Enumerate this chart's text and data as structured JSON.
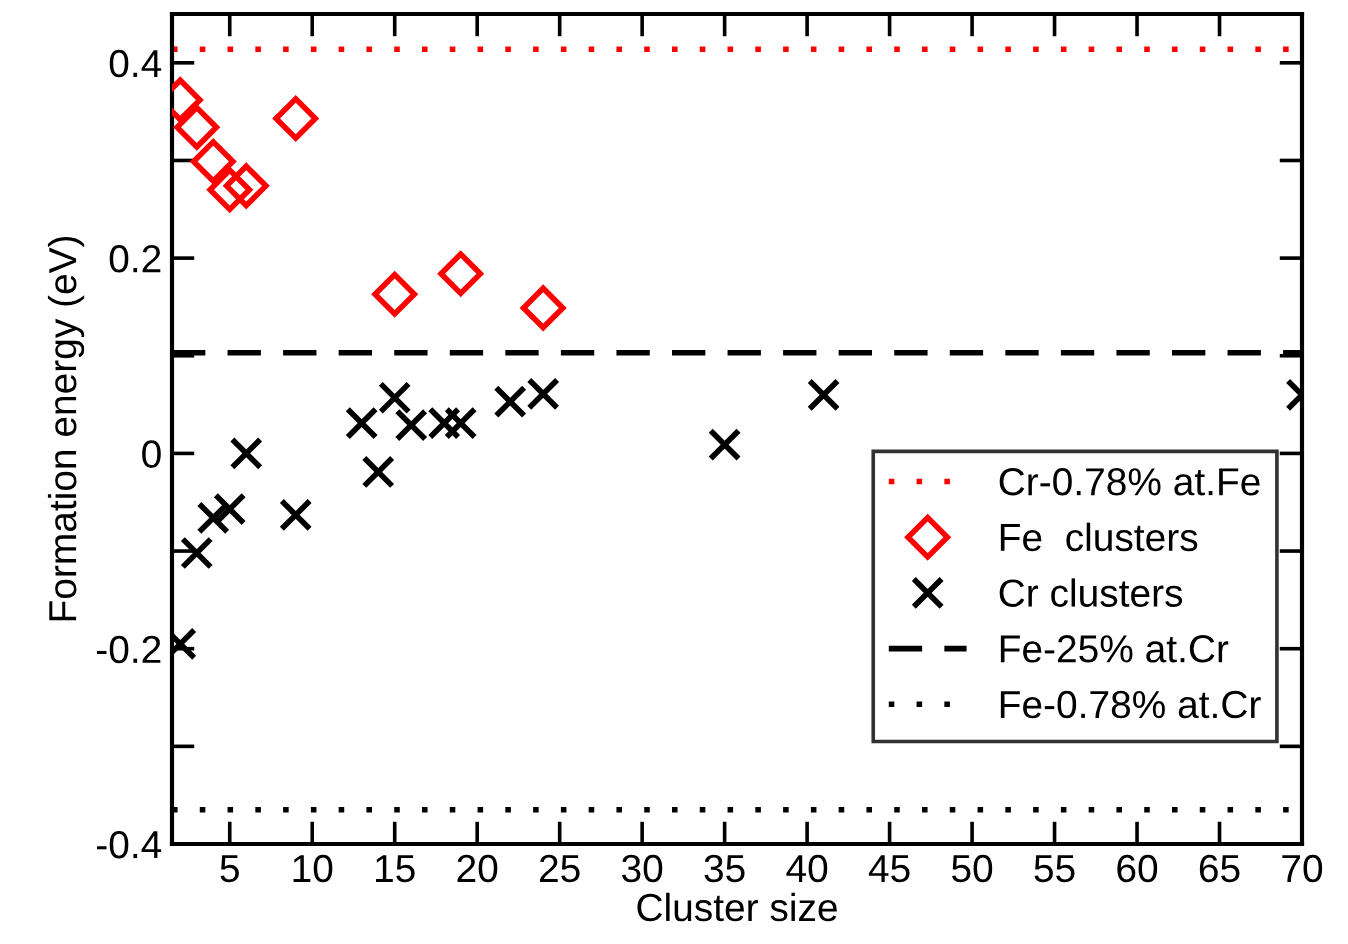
{
  "chart_data": {
    "type": "scatter",
    "xlabel": "Cluster size",
    "ylabel": "Formation energy (eV)",
    "xlim": [
      1.5,
      70
    ],
    "xticks": [
      5,
      10,
      15,
      20,
      25,
      30,
      35,
      40,
      45,
      50,
      55,
      60,
      65,
      70
    ],
    "ylim": [
      -0.4,
      0.45
    ],
    "yticks": [
      -0.4,
      {
        "value": -0.3,
        "label": null
      },
      -0.2,
      {
        "value": -0.1,
        "label": null
      },
      0,
      {
        "value": 0.1,
        "label": null
      },
      0.2,
      {
        "value": 0.3,
        "label": null
      },
      0.4
    ],
    "grid": false,
    "legend": "bottom right",
    "series": [
      {
        "name": "Fe  clusters",
        "color": "#ff0000",
        "marker": "diamond",
        "x": [
          2,
          3,
          4,
          5,
          6,
          9,
          15,
          19,
          24
        ],
        "values": [
          0.362,
          0.334,
          0.299,
          0.27,
          0.274,
          0.343,
          0.163,
          0.184,
          0.149
        ]
      },
      {
        "name": "Cr clusters",
        "color": "#000000",
        "marker": "cross",
        "x": [
          2,
          3,
          4,
          5,
          6,
          9,
          13,
          14,
          15,
          16,
          18,
          19,
          22,
          24,
          35,
          41,
          70
        ],
        "values": [
          -0.195,
          -0.102,
          -0.066,
          -0.057,
          0,
          -0.063,
          0.031,
          -0.019,
          0.057,
          0.029,
          0.031,
          0.031,
          0.053,
          0.061,
          0.009,
          0.06,
          0.06
        ]
      }
    ],
    "ref_lines": [
      {
        "axis": "y",
        "value": 0.414,
        "label": "Cr-0.78% at.Fe",
        "color": "#ff0000",
        "line_style": "dotted"
      },
      {
        "axis": "y",
        "value": 0.103,
        "label": "Fe-25% at.Cr",
        "color": "#000000",
        "line_style": "dashed"
      },
      {
        "axis": "y",
        "value": -0.365,
        "label": "Fe-0.78% at.Cr",
        "color": "#000000",
        "line_style": "dotted"
      }
    ]
  }
}
